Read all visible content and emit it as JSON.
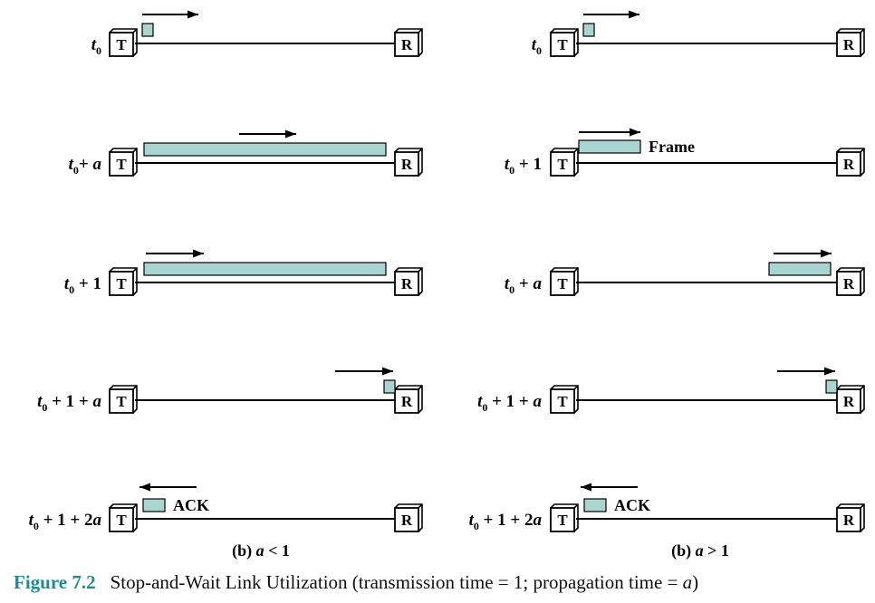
{
  "colors": {
    "packet_fill": "#a8d5d0",
    "stroke": "#000000",
    "caption_accent": "#1e8c94"
  },
  "nodes": {
    "transmitter": "T",
    "receiver": "R"
  },
  "panels": [
    {
      "caption": {
        "label": "(b)",
        "var": "a",
        "rel": " < 1"
      },
      "rows": [
        {
          "time": {
            "base": "t",
            "sub": "0",
            "rest": "",
            "var": ""
          },
          "packet": "start",
          "arrow": "right"
        },
        {
          "time": {
            "base": "t",
            "sub": "0",
            "rest": "+ ",
            "var": "a"
          },
          "packet": "full-link",
          "arrow": "right"
        },
        {
          "time": {
            "base": "t",
            "sub": "0",
            "rest": " + 1",
            "var": ""
          },
          "packet": "full-link",
          "arrow": "right"
        },
        {
          "time": {
            "base": "t",
            "sub": "0",
            "rest": " + 1 + ",
            "var": "a"
          },
          "packet": "end",
          "arrow": "right"
        },
        {
          "time": {
            "base": "t",
            "sub": "0",
            "rest": " + 1 + 2",
            "var": "a"
          },
          "packet": "ack",
          "arrow": "left",
          "label": "ACK"
        }
      ]
    },
    {
      "caption": {
        "label": "(b)",
        "var": "a",
        "rel": " > 1"
      },
      "rows": [
        {
          "time": {
            "base": "t",
            "sub": "0",
            "rest": "",
            "var": ""
          },
          "packet": "start",
          "arrow": "right"
        },
        {
          "time": {
            "base": "t",
            "sub": "0",
            "rest": " + 1",
            "var": ""
          },
          "packet": "frame",
          "arrow": "right",
          "label": "Frame"
        },
        {
          "time": {
            "base": "t",
            "sub": "0",
            "rest": " + ",
            "var": "a"
          },
          "packet": "near-end",
          "arrow": "right"
        },
        {
          "time": {
            "base": "t",
            "sub": "0",
            "rest": " + 1 + ",
            "var": "a"
          },
          "packet": "end",
          "arrow": "right"
        },
        {
          "time": {
            "base": "t",
            "sub": "0",
            "rest": " + 1 + 2",
            "var": "a"
          },
          "packet": "ack",
          "arrow": "left",
          "label": "ACK"
        }
      ]
    }
  ],
  "figure_caption": {
    "number": "Figure 7.2",
    "text_before": "Stop-and-Wait Link Utilization (transmission time = 1; propagation time = ",
    "var": "a",
    "text_after": ")"
  }
}
